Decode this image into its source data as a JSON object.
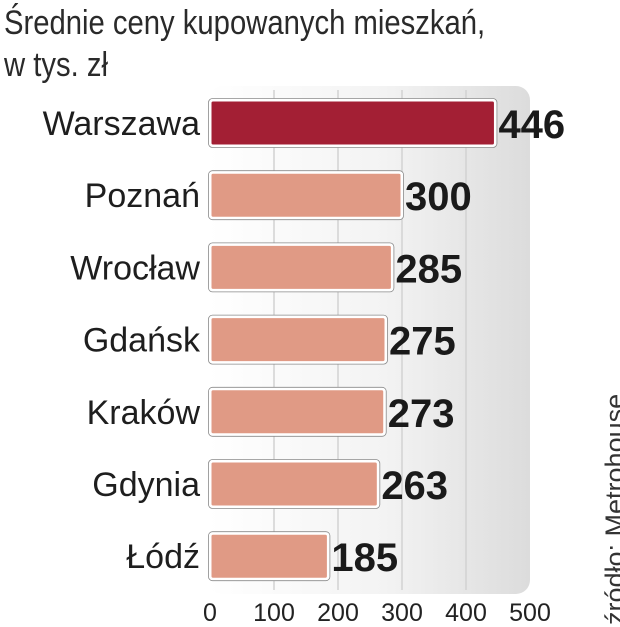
{
  "chart_data": {
    "type": "bar",
    "orientation": "horizontal",
    "title": "Średnie ceny kupowanych mieszkań,",
    "subtitle": "w tys. zł",
    "categories": [
      "Warszawa",
      "Poznań",
      "Wrocław",
      "Gdańsk",
      "Kraków",
      "Gdynia",
      "Łódź"
    ],
    "values": [
      446,
      300,
      285,
      275,
      273,
      263,
      185
    ],
    "xlim": [
      0,
      500
    ],
    "ticks": [
      "0",
      "100",
      "200",
      "300",
      "400",
      "500"
    ],
    "grid": true,
    "source": "źródło: Metrohouse",
    "colors": {
      "highlight": "#a31f34",
      "bar": "#e09a85",
      "panel": "#efefef"
    }
  }
}
